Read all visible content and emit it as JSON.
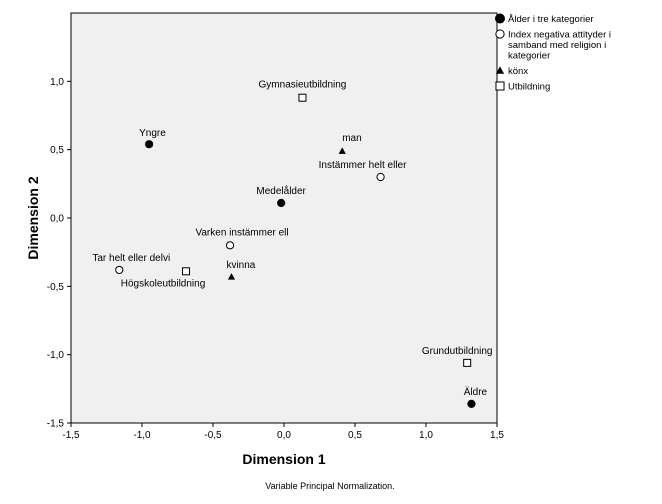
{
  "chart_data": {
    "type": "scatter",
    "xlabel": "Dimension 1",
    "ylabel": "Dimension 2",
    "caption": "Variable Principal Normalization.",
    "xlim": [
      -1.5,
      1.5
    ],
    "ylim": [
      -1.5,
      1.5
    ],
    "x_ticks": [
      "-1,5",
      "-1,0",
      "-0,5",
      "0,0",
      "0,5",
      "1,0",
      "1,5"
    ],
    "y_ticks": [
      "1,0",
      "0,5",
      "0,0",
      "-0,5",
      "-1,0",
      "-1,5"
    ],
    "legend_position": "right",
    "series": [
      {
        "name": "Ålder i tre kategorier",
        "marker": "filled-circle",
        "points": [
          {
            "label": "Yngre",
            "x": -0.95,
            "y": 0.54
          },
          {
            "label": "Medelålder",
            "x": -0.02,
            "y": 0.11
          },
          {
            "label": "Äldre",
            "x": 1.32,
            "y": -1.36
          }
        ]
      },
      {
        "name": "Index negativa attityder i samband med religion i kategorier",
        "marker": "open-circle",
        "points": [
          {
            "label": "Instämmer helt eller",
            "x": 0.68,
            "y": 0.3
          },
          {
            "label": "Varken instämmer ell",
            "x": -0.38,
            "y": -0.2
          },
          {
            "label": "Tar helt eller delvi",
            "x": -1.16,
            "y": -0.38
          }
        ]
      },
      {
        "name": "könx",
        "marker": "filled-triangle",
        "points": [
          {
            "label": "man",
            "x": 0.41,
            "y": 0.49
          },
          {
            "label": "kvinna",
            "x": -0.37,
            "y": -0.43
          }
        ]
      },
      {
        "name": "Utbildning",
        "marker": "open-square",
        "points": [
          {
            "label": "Gymnasieutbildning",
            "x": 0.13,
            "y": 0.88
          },
          {
            "label": "Högskoleutbildning",
            "x": -0.69,
            "y": -0.39
          },
          {
            "label": "Grundutbildning",
            "x": 1.29,
            "y": -1.06
          }
        ]
      }
    ]
  },
  "legend": {
    "items": [
      {
        "lines": [
          "Ålder i tre kategorier"
        ],
        "marker": "filled-circle"
      },
      {
        "lines": [
          "Index negativa attityder i",
          "samband med religion i",
          "kategorier"
        ],
        "marker": "open-circle"
      },
      {
        "lines": [
          "könx"
        ],
        "marker": "filled-triangle"
      },
      {
        "lines": [
          "Utbildning"
        ],
        "marker": "open-square"
      }
    ]
  },
  "style": {
    "plot_background": "#f0f0f0",
    "marker_color": "#000000"
  }
}
